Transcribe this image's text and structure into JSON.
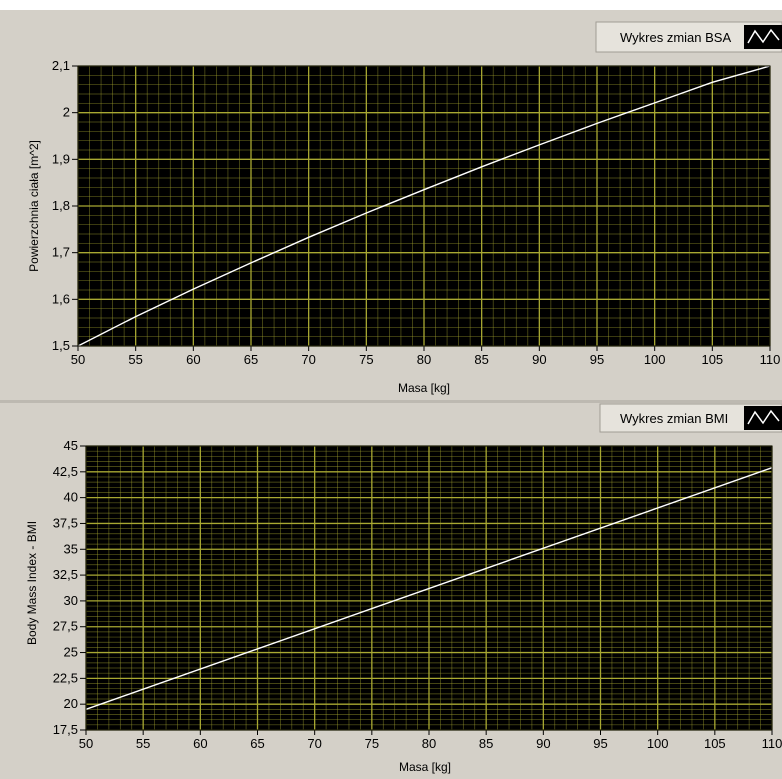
{
  "chart_data": [
    {
      "type": "line",
      "legend": "Wykres zmian BSA",
      "xlabel": "Masa [kg]",
      "ylabel": "Powierzchnia ciała [m^2]",
      "xlim": [
        50,
        110
      ],
      "ylim": [
        1.5,
        2.1
      ],
      "xticks": [
        50,
        55,
        60,
        65,
        70,
        75,
        80,
        85,
        90,
        95,
        100,
        105,
        110
      ],
      "xtick_labels": [
        "50",
        "55",
        "60",
        "65",
        "70",
        "75",
        "80",
        "85",
        "90",
        "95",
        "100",
        "105",
        "110"
      ],
      "yticks": [
        1.5,
        1.6,
        1.7,
        1.8,
        1.9,
        2.0,
        2.1
      ],
      "ytick_labels": [
        "1,5",
        "1,6",
        "1,7",
        "1,8",
        "1,9",
        "2",
        "2,1"
      ],
      "x": [
        50,
        55,
        60,
        65,
        70,
        75,
        80,
        85,
        90,
        95,
        100,
        105,
        110
      ],
      "y": [
        1.5,
        1.563,
        1.622,
        1.678,
        1.733,
        1.785,
        1.835,
        1.884,
        1.931,
        1.977,
        2.021,
        2.065,
        2.1
      ],
      "grid": true,
      "background": "#000000",
      "grid_color": "#a8a832",
      "line_color": "#ffffff"
    },
    {
      "type": "line",
      "legend": "Wykres zmian BMI",
      "xlabel": "Masa [kg]",
      "ylabel": "Body Mass Index - BMI",
      "xlim": [
        50,
        110
      ],
      "ylim": [
        17.5,
        45
      ],
      "xticks": [
        50,
        55,
        60,
        65,
        70,
        75,
        80,
        85,
        90,
        95,
        100,
        105,
        110
      ],
      "xtick_labels": [
        "50",
        "55",
        "60",
        "65",
        "70",
        "75",
        "80",
        "85",
        "90",
        "95",
        "100",
        "105",
        "110"
      ],
      "yticks": [
        17.5,
        20,
        22.5,
        25,
        27.5,
        30,
        32.5,
        35,
        37.5,
        40,
        42.5,
        45
      ],
      "ytick_labels": [
        "17,5",
        "20",
        "22,5",
        "25",
        "27,5",
        "30",
        "32,5",
        "35",
        "37,5",
        "40",
        "42,5",
        "45"
      ],
      "x": [
        50,
        110
      ],
      "y": [
        19.5,
        42.9
      ],
      "grid": true,
      "background": "#000000",
      "grid_color": "#a8a832",
      "line_color": "#ffffff"
    }
  ]
}
